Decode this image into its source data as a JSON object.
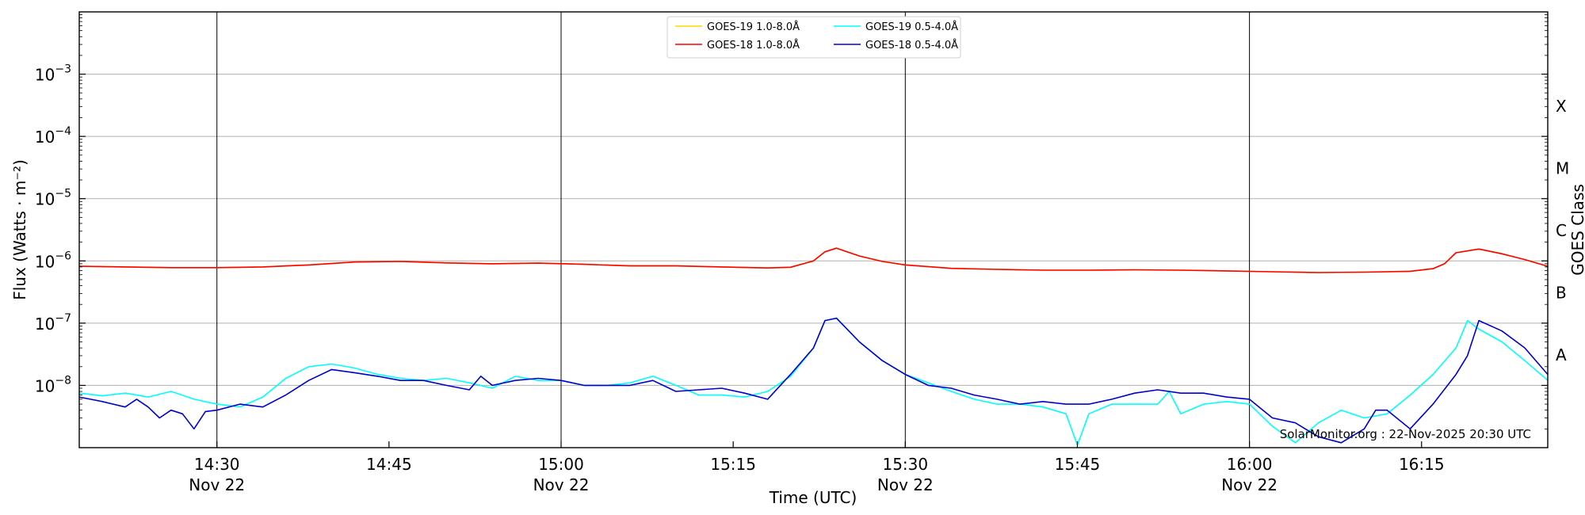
{
  "chart_data": {
    "type": "line",
    "xlabel": "Time (UTC)",
    "ylabel": "Flux (Watts · m⁻²)",
    "ylabel_right": "GOES Class",
    "yscale": "log",
    "ylim": [
      1e-09,
      0.01
    ],
    "xlim": [
      "2025-11-22 14:18",
      "2025-11-22 16:26"
    ],
    "grid": "horizontal at decades, vertical at half-hours",
    "legend_position": "top-center",
    "y_ticks": [
      {
        "value": 1e-08,
        "base": "10",
        "exp": "−8"
      },
      {
        "value": 1e-07,
        "base": "10",
        "exp": "−7"
      },
      {
        "value": 1e-06,
        "base": "10",
        "exp": "−6"
      },
      {
        "value": 1e-05,
        "base": "10",
        "exp": "−5"
      },
      {
        "value": 0.0001,
        "base": "10",
        "exp": "−4"
      },
      {
        "value": 0.001,
        "base": "10",
        "exp": "−3"
      }
    ],
    "x_ticks": [
      {
        "time": "14:30",
        "line1": "14:30",
        "line2": "Nov 22"
      },
      {
        "time": "14:45",
        "line1": "14:45",
        "line2": ""
      },
      {
        "time": "15:00",
        "line1": "15:00",
        "line2": "Nov 22"
      },
      {
        "time": "15:15",
        "line1": "15:15",
        "line2": ""
      },
      {
        "time": "15:30",
        "line1": "15:30",
        "line2": "Nov 22"
      },
      {
        "time": "15:45",
        "line1": "15:45",
        "line2": ""
      },
      {
        "time": "16:00",
        "line1": "16:00",
        "line2": "Nov 22"
      },
      {
        "time": "16:15",
        "line1": "16:15",
        "line2": ""
      }
    ],
    "goes_classes": [
      {
        "label": "A",
        "value": 3.16e-08
      },
      {
        "label": "B",
        "value": 3.16e-07
      },
      {
        "label": "C",
        "value": 3.16e-06
      },
      {
        "label": "M",
        "value": 3.16e-05
      },
      {
        "label": "X",
        "value": 0.000316
      }
    ],
    "series": [
      {
        "name": "GOES-19 1.0-8.0Å",
        "color": "#ffd700",
        "x": [
          "14:18",
          "14:22",
          "14:26",
          "14:30",
          "14:34",
          "14:38",
          "14:42",
          "14:46",
          "14:50",
          "14:54",
          "14:58",
          "15:02",
          "15:06",
          "15:10",
          "15:14",
          "15:18",
          "15:20",
          "15:22",
          "15:23",
          "15:24",
          "15:26",
          "15:28",
          "15:30",
          "15:34",
          "15:38",
          "15:42",
          "15:46",
          "15:50",
          "15:54",
          "15:58",
          "16:02",
          "16:06",
          "16:10",
          "16:14",
          "16:16",
          "16:17",
          "16:18",
          "16:20",
          "16:22",
          "16:24",
          "16:26"
        ],
        "y": [
          8.2e-07,
          8e-07,
          7.8e-07,
          7.8e-07,
          8e-07,
          8.6e-07,
          9.6e-07,
          9.8e-07,
          9.3e-07,
          9e-07,
          9.2e-07,
          8.8e-07,
          8.3e-07,
          8.3e-07,
          8e-07,
          7.7e-07,
          7.9e-07,
          1e-06,
          1.4e-06,
          1.6e-06,
          1.2e-06,
          9.8e-07,
          8.6e-07,
          7.6e-07,
          7.3e-07,
          7.1e-07,
          7.1e-07,
          7.2e-07,
          7.1e-07,
          6.9e-07,
          6.7e-07,
          6.5e-07,
          6.6e-07,
          6.8e-07,
          7.5e-07,
          9e-07,
          1.35e-06,
          1.55e-06,
          1.3e-06,
          1.05e-06,
          8.2e-07
        ]
      },
      {
        "name": "GOES-18 1.0-8.0Å",
        "color": "#ff0000",
        "x": [
          "14:18",
          "14:22",
          "14:26",
          "14:30",
          "14:34",
          "14:38",
          "14:42",
          "14:46",
          "14:50",
          "14:54",
          "14:58",
          "15:02",
          "15:06",
          "15:10",
          "15:14",
          "15:18",
          "15:20",
          "15:22",
          "15:23",
          "15:24",
          "15:26",
          "15:28",
          "15:30",
          "15:34",
          "15:38",
          "15:42",
          "15:46",
          "15:50",
          "15:54",
          "15:58",
          "16:02",
          "16:06",
          "16:10",
          "16:14",
          "16:16",
          "16:17",
          "16:18",
          "16:20",
          "16:22",
          "16:24",
          "16:26"
        ],
        "y": [
          8.2e-07,
          8e-07,
          7.8e-07,
          7.8e-07,
          8e-07,
          8.6e-07,
          9.6e-07,
          9.8e-07,
          9.3e-07,
          9e-07,
          9.2e-07,
          8.8e-07,
          8.3e-07,
          8.3e-07,
          8e-07,
          7.7e-07,
          7.9e-07,
          1e-06,
          1.4e-06,
          1.6e-06,
          1.2e-06,
          9.8e-07,
          8.6e-07,
          7.6e-07,
          7.3e-07,
          7.1e-07,
          7.1e-07,
          7.2e-07,
          7.1e-07,
          6.9e-07,
          6.7e-07,
          6.5e-07,
          6.6e-07,
          6.8e-07,
          7.5e-07,
          9e-07,
          1.35e-06,
          1.55e-06,
          1.3e-06,
          1.05e-06,
          8.2e-07
        ]
      },
      {
        "name": "GOES-19 0.5-4.0Å",
        "color": "#00ffff",
        "x": [
          "14:18",
          "14:20",
          "14:22",
          "14:24",
          "14:26",
          "14:28",
          "14:30",
          "14:32",
          "14:34",
          "14:36",
          "14:38",
          "14:40",
          "14:42",
          "14:44",
          "14:46",
          "14:48",
          "14:50",
          "14:52",
          "14:54",
          "14:56",
          "14:58",
          "15:00",
          "15:02",
          "15:04",
          "15:06",
          "15:08",
          "15:10",
          "15:12",
          "15:14",
          "15:16",
          "15:18",
          "15:20",
          "15:22",
          "15:23",
          "15:24",
          "15:26",
          "15:28",
          "15:30",
          "15:32",
          "15:34",
          "15:36",
          "15:38",
          "15:40",
          "15:42",
          "15:44",
          "15:45",
          "15:46",
          "15:48",
          "15:50",
          "15:52",
          "15:53",
          "15:54",
          "15:56",
          "15:58",
          "16:00",
          "16:02",
          "16:04",
          "16:06",
          "16:08",
          "16:10",
          "16:12",
          "16:14",
          "16:16",
          "16:18",
          "16:19",
          "16:20",
          "16:22",
          "16:24",
          "16:26"
        ],
        "y": [
          7.5e-09,
          6.8e-09,
          7.5e-09,
          6.5e-09,
          8e-09,
          6e-09,
          5e-09,
          4.5e-09,
          6.5e-09,
          1.3e-08,
          2e-08,
          2.2e-08,
          1.9e-08,
          1.5e-08,
          1.3e-08,
          1.2e-08,
          1.3e-08,
          1.1e-08,
          9e-09,
          1.4e-08,
          1.2e-08,
          1.2e-08,
          1e-08,
          1e-08,
          1.1e-08,
          1.4e-08,
          1e-08,
          7e-09,
          7e-09,
          6.5e-09,
          8e-09,
          1.4e-08,
          4e-08,
          1.1e-07,
          1.2e-07,
          5e-08,
          2.5e-08,
          1.5e-08,
          1.1e-08,
          8e-09,
          6e-09,
          5e-09,
          5e-09,
          4.5e-09,
          3.5e-09,
          1.1e-09,
          3.5e-09,
          5e-09,
          5e-09,
          5e-09,
          8e-09,
          3.5e-09,
          5e-09,
          5.5e-09,
          5e-09,
          2.2e-09,
          1.2e-09,
          2.5e-09,
          4e-09,
          3e-09,
          3.5e-09,
          7e-09,
          1.5e-08,
          4e-08,
          1.1e-07,
          8e-08,
          5e-08,
          2.5e-08,
          1.2e-08
        ]
      },
      {
        "name": "GOES-18 0.5-4.0Å",
        "color": "#0000cd",
        "x": [
          "14:18",
          "14:20",
          "14:22",
          "14:23",
          "14:24",
          "14:25",
          "14:26",
          "14:27",
          "14:28",
          "14:29",
          "14:30",
          "14:32",
          "14:34",
          "14:36",
          "14:38",
          "14:40",
          "14:42",
          "14:44",
          "14:46",
          "14:48",
          "14:50",
          "14:52",
          "14:53",
          "14:54",
          "14:56",
          "14:58",
          "15:00",
          "15:02",
          "15:04",
          "15:06",
          "15:08",
          "15:10",
          "15:12",
          "15:14",
          "15:16",
          "15:18",
          "15:20",
          "15:22",
          "15:23",
          "15:24",
          "15:26",
          "15:28",
          "15:30",
          "15:32",
          "15:34",
          "15:36",
          "15:38",
          "15:40",
          "15:42",
          "15:44",
          "15:46",
          "15:48",
          "15:50",
          "15:52",
          "15:54",
          "15:56",
          "15:58",
          "16:00",
          "16:02",
          "16:04",
          "16:06",
          "16:08",
          "16:10",
          "16:11",
          "16:12",
          "16:14",
          "16:16",
          "16:18",
          "16:19",
          "16:20",
          "16:22",
          "16:24",
          "16:26"
        ],
        "y": [
          6.5e-09,
          5.5e-09,
          4.5e-09,
          6e-09,
          4.5e-09,
          3e-09,
          4e-09,
          3.5e-09,
          2e-09,
          3.8e-09,
          4e-09,
          5e-09,
          4.5e-09,
          7e-09,
          1.2e-08,
          1.8e-08,
          1.6e-08,
          1.4e-08,
          1.2e-08,
          1.2e-08,
          1e-08,
          8.5e-09,
          1.4e-08,
          1e-08,
          1.2e-08,
          1.3e-08,
          1.2e-08,
          1e-08,
          1e-08,
          1e-08,
          1.2e-08,
          8e-09,
          8.5e-09,
          9e-09,
          7.5e-09,
          6e-09,
          1.5e-08,
          4e-08,
          1.1e-07,
          1.2e-07,
          5e-08,
          2.5e-08,
          1.5e-08,
          1e-08,
          9e-09,
          7e-09,
          6e-09,
          5e-09,
          5.5e-09,
          5e-09,
          5e-09,
          6e-09,
          7.5e-09,
          8.5e-09,
          7.5e-09,
          7.5e-09,
          6.5e-09,
          6e-09,
          3e-09,
          2.5e-09,
          1.5e-09,
          1.2e-09,
          2e-09,
          4e-09,
          4e-09,
          2e-09,
          5e-09,
          1.5e-08,
          3e-08,
          1.1e-07,
          7.5e-08,
          4e-08,
          1.5e-08
        ]
      }
    ],
    "annotation": "SolarMonitor.org : 22-Nov-2025 20:30 UTC"
  }
}
